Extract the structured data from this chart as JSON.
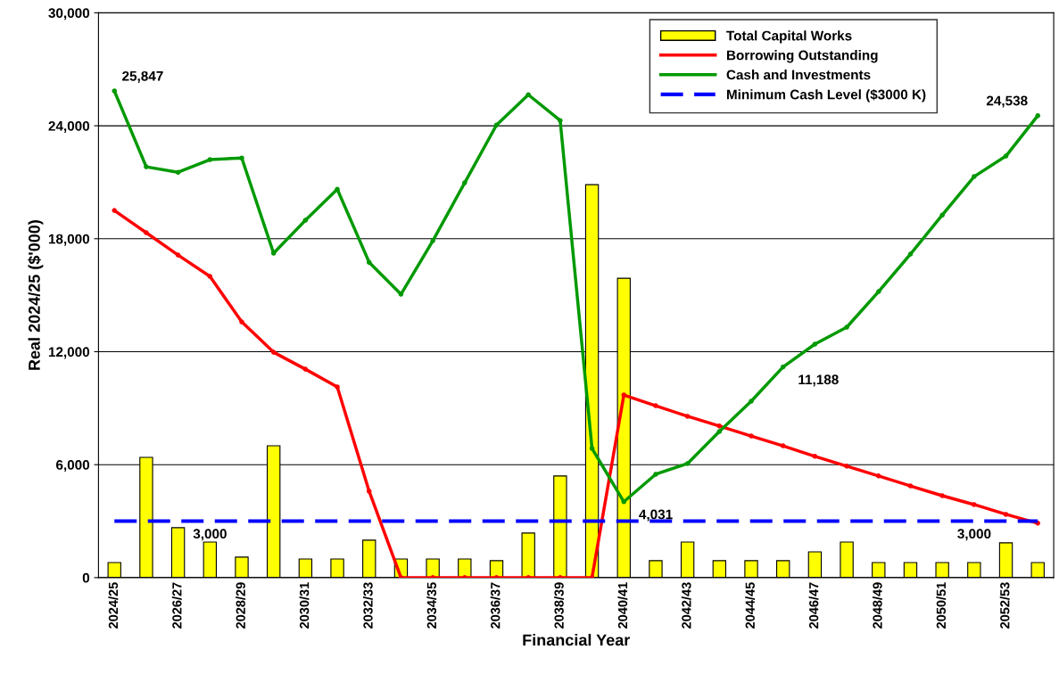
{
  "chart_data": {
    "type": "bar",
    "xlabel": "Financial Year",
    "ylabel": "Real 2024/25 ($'000)",
    "categories": [
      "2024/25",
      null,
      "2026/27",
      null,
      "2028/29",
      null,
      "2030/31",
      null,
      "2032/33",
      null,
      "2034/35",
      null,
      "2036/37",
      null,
      "2038/39",
      null,
      "2040/41",
      null,
      "2042/43",
      null,
      "2044/45",
      null,
      "2046/47",
      null,
      "2048/49",
      null,
      "2050/51",
      null,
      "2052/53",
      null
    ],
    "series": [
      {
        "name": "Total Capital Works",
        "color": "#ffff00",
        "values": [
          800,
          6390,
          2650,
          1890,
          1090,
          7000,
          990,
          990,
          1990,
          990,
          990,
          990,
          900,
          2370,
          5400,
          20870,
          15900,
          900,
          1890,
          900,
          900,
          900,
          1370,
          1890,
          800,
          800,
          800,
          800,
          1850,
          800
        ]
      },
      {
        "name": "Borrowing Outstanding",
        "type": "line",
        "color": "#ff0000",
        "marker": "circle",
        "values": [
          19500,
          18320,
          17130,
          16000,
          13580,
          11970,
          11070,
          10130,
          4590,
          0,
          0,
          0,
          0,
          0,
          0,
          0,
          9700,
          9130,
          8570,
          8050,
          7520,
          7000,
          6440,
          5920,
          5400,
          4870,
          4350,
          3880,
          3360,
          2890
        ]
      },
      {
        "name": "Cash and Investments",
        "type": "line",
        "color": "#009900",
        "marker": "circle",
        "values": [
          25847,
          21820,
          21530,
          22200,
          22290,
          17230,
          18980,
          20630,
          16750,
          15050,
          17890,
          20970,
          24040,
          25650,
          24280,
          6860,
          4031,
          5490,
          6060,
          7760,
          9370,
          11188,
          12400,
          13300,
          15190,
          17180,
          19260,
          21300,
          22390,
          24538
        ],
        "value_labels": [
          "25,847",
          null,
          null,
          null,
          null,
          null,
          null,
          null,
          null,
          null,
          null,
          null,
          null,
          null,
          null,
          null,
          "4,031",
          null,
          null,
          null,
          null,
          "11,188",
          null,
          null,
          null,
          null,
          null,
          null,
          null,
          "24,538"
        ]
      },
      {
        "name": "Minimum Cash Level ($3000 K)",
        "type": "line",
        "color": "#0000ff",
        "line_style": "dashed",
        "values": [
          3000,
          3000,
          3000,
          3000,
          3000,
          3000,
          3000,
          3000,
          3000,
          3000,
          3000,
          3000,
          3000,
          3000,
          3000,
          3000,
          3000,
          3000,
          3000,
          3000,
          3000,
          3000,
          3000,
          3000,
          3000,
          3000,
          3000,
          3000,
          3000,
          3000
        ],
        "value_labels": [
          null,
          null,
          "3,000",
          null,
          null,
          null,
          null,
          null,
          null,
          null,
          null,
          null,
          null,
          null,
          null,
          null,
          null,
          null,
          null,
          null,
          null,
          null,
          null,
          null,
          null,
          null,
          "3,000",
          null,
          null,
          null
        ]
      }
    ],
    "ylim": [
      0,
      30000
    ],
    "yticks": [
      0,
      {
        "value": 6000,
        "label": "6,000"
      },
      {
        "value": 12000,
        "label": "12,000"
      },
      {
        "value": 18000,
        "label": "18,000"
      },
      {
        "value": 24000,
        "label": "24,000"
      },
      {
        "value": 30000,
        "label": "30,000"
      }
    ],
    "grid": "y",
    "legend": "top right"
  }
}
